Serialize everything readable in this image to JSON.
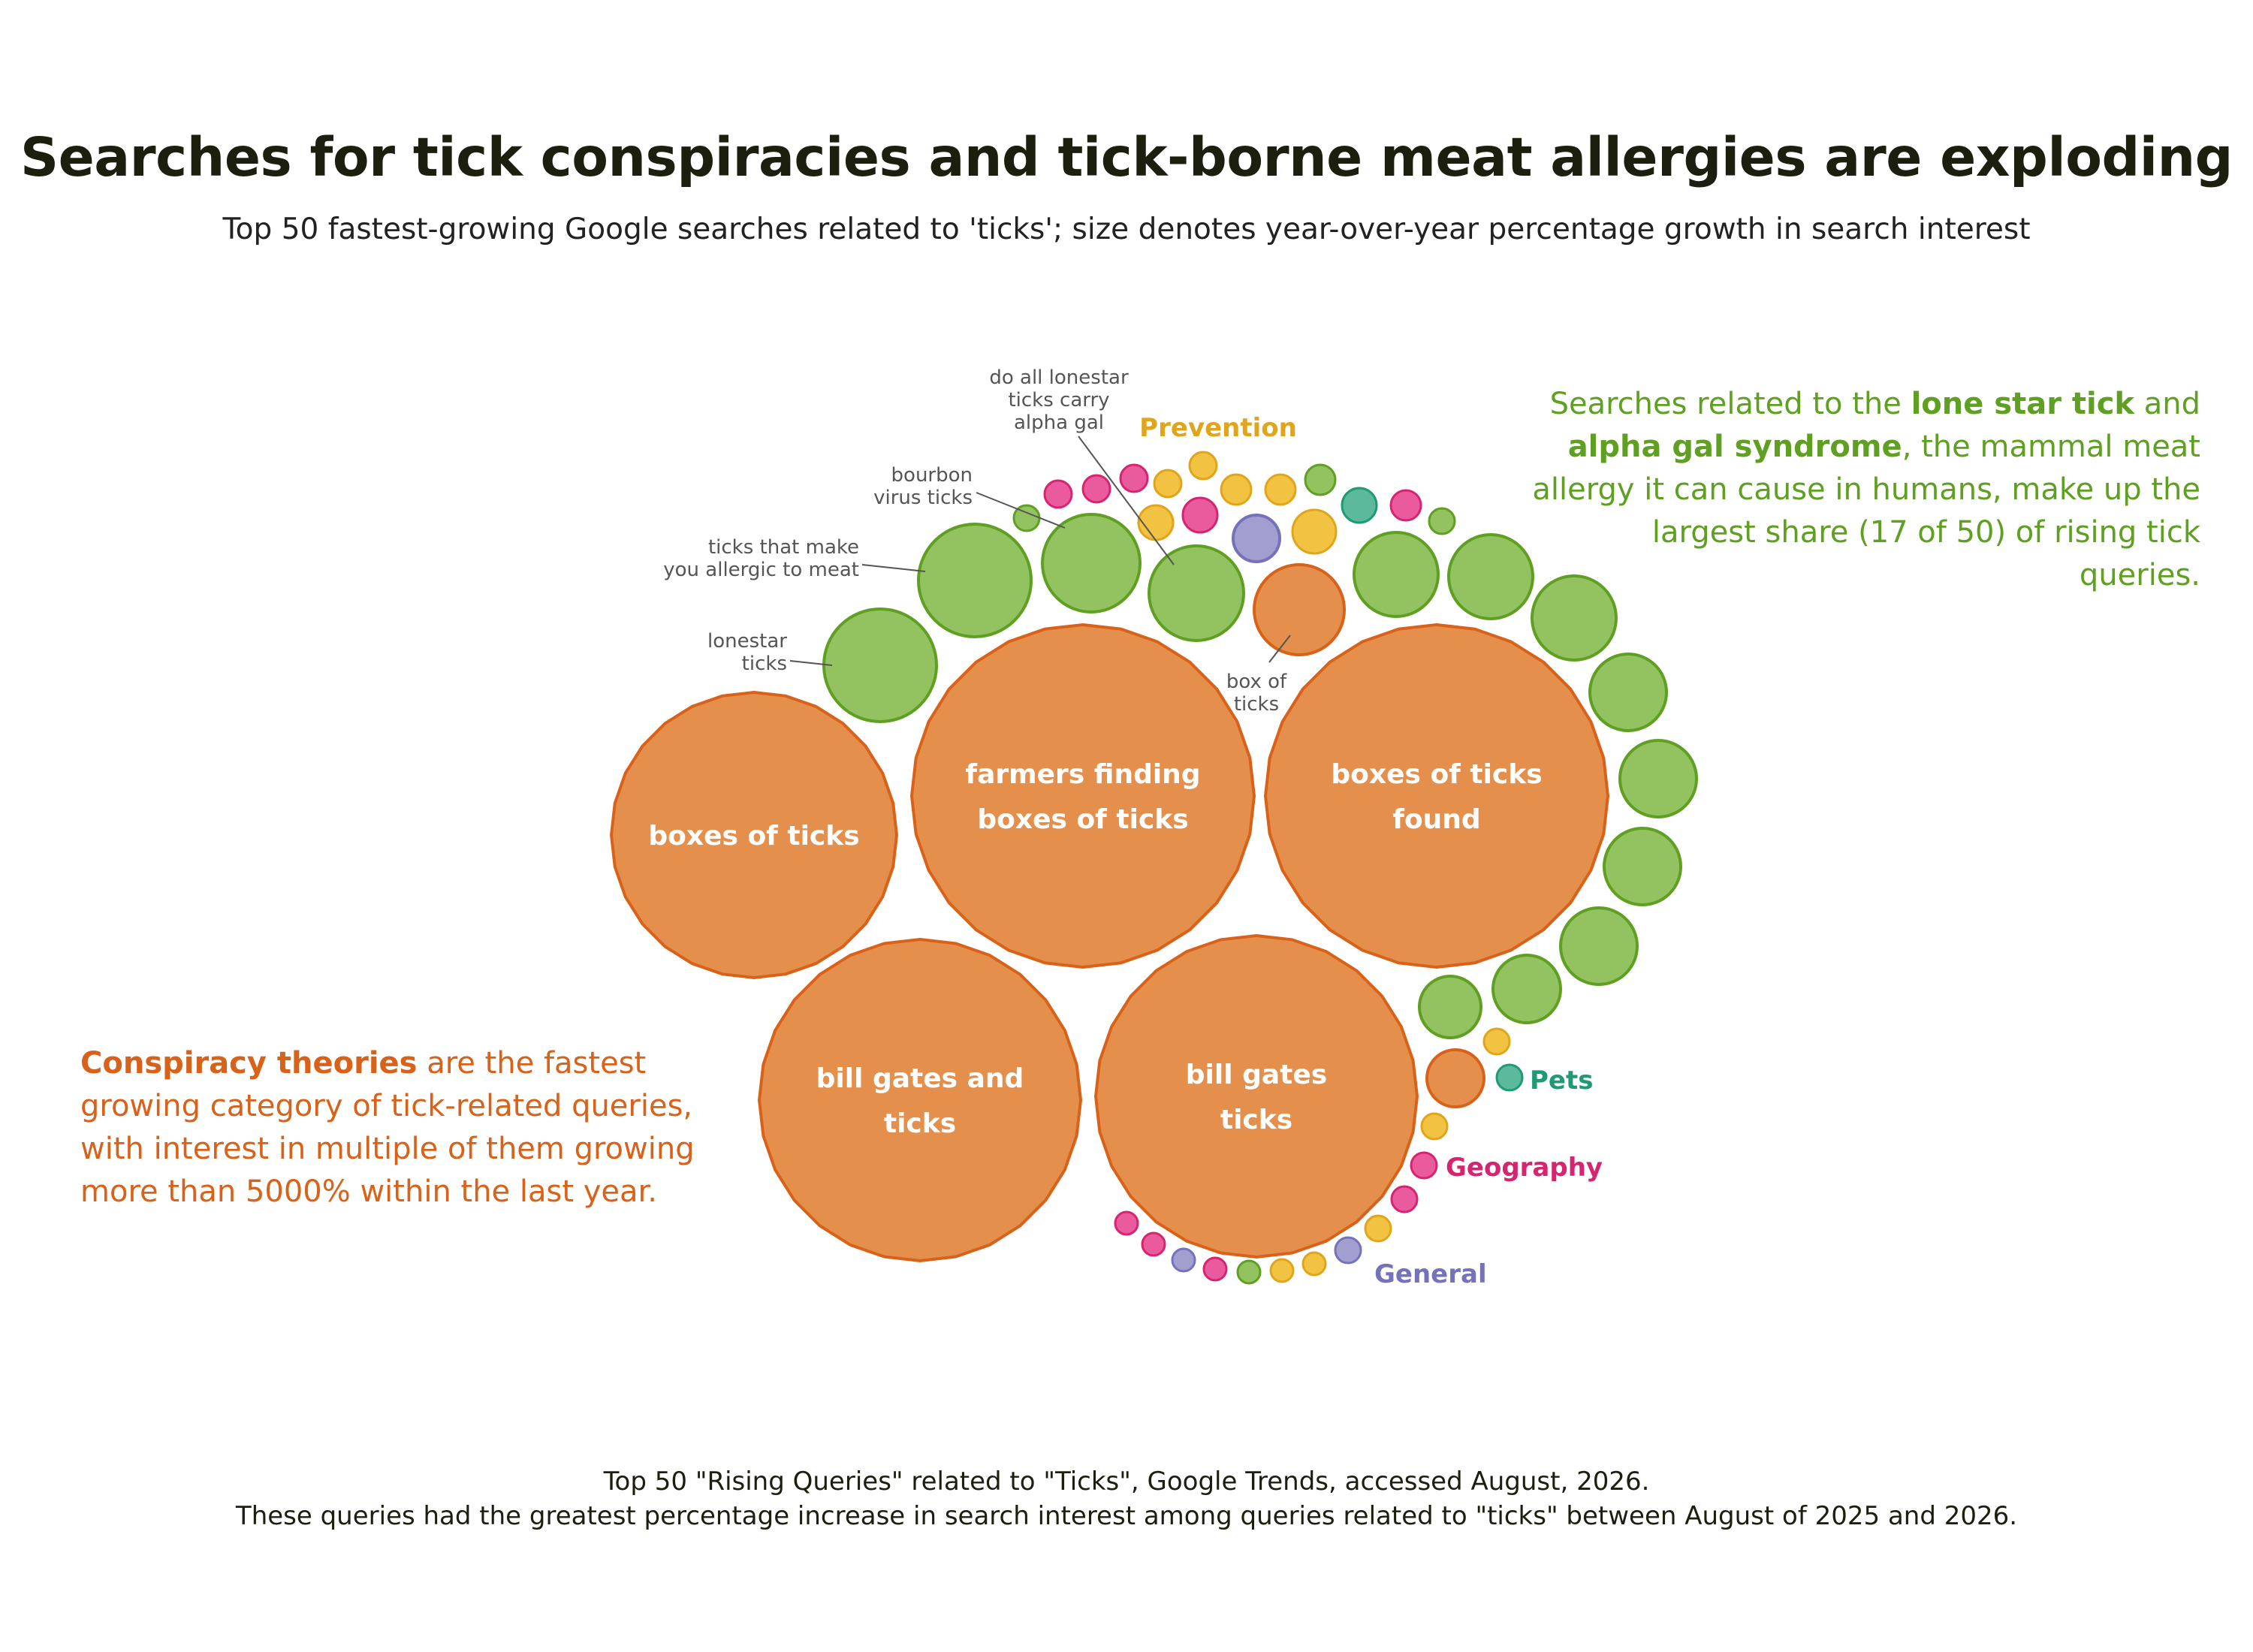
{
  "title": "Searches for tick conspiracies and tick-borne meat allergies are exploding",
  "subtitle": "Top 50 fastest-growing Google searches related to 'ticks'; size denotes year-over-year percentage growth in search interest",
  "annotations": {
    "green": {
      "t1": "Searches related to the ",
      "b1": "lone star tick",
      "t2": " and ",
      "b2": "alpha gal syndrome",
      "t3": ", the mammal meat allergy it can cause in humans, make up the largest share (17 of 50) of rising tick queries."
    },
    "orange": {
      "b1": "Conspiracy theories",
      "t1": " are the fastest growing category of tick-related queries, with interest in multiple of them growing more than 5000% within the last year."
    }
  },
  "footer": {
    "line1": "Top 50 \"Rising Queries\" related to \"Ticks\", Google Trends, accessed August, 2026.",
    "line2": "These queries had the greatest percentage increase in search interest among queries related to \"ticks\" between August of 2025 and 2026."
  },
  "colors": {
    "conspiracy": {
      "fill": "#e58f4d",
      "stroke": "#d9621a"
    },
    "lone_star": {
      "fill": "#93c260",
      "stroke": "#5f9f22"
    },
    "prevention": {
      "fill": "#f2c242",
      "stroke": "#e0a51a"
    },
    "geography": {
      "fill": "#ea5b9e",
      "stroke": "#d6246f"
    },
    "general": {
      "fill": "#a19fd0",
      "stroke": "#7572b9"
    },
    "pets": {
      "fill": "#5cb99c",
      "stroke": "#1e9a75"
    }
  },
  "chart_data": {
    "type": "bubble",
    "categories": {
      "prevention": "Prevention",
      "pets": "Pets",
      "geography": "Geography",
      "general": "General"
    },
    "labeled_bubbles": [
      {
        "label": "farmers finding boxes of ticks",
        "lines": [
          "farmers finding",
          "boxes of ticks"
        ],
        "category": "conspiracy"
      },
      {
        "label": "boxes of ticks found",
        "lines": [
          "boxes of ticks",
          "found"
        ],
        "category": "conspiracy"
      },
      {
        "label": "boxes of ticks",
        "lines": [
          "boxes of ticks"
        ],
        "category": "conspiracy"
      },
      {
        "label": "bill gates and ticks",
        "lines": [
          "bill gates and",
          "ticks"
        ],
        "category": "conspiracy"
      },
      {
        "label": "bill gates ticks",
        "lines": [
          "bill gates",
          "ticks"
        ],
        "category": "conspiracy"
      }
    ],
    "callouts": [
      {
        "lines": [
          "lonestar",
          "ticks"
        ]
      },
      {
        "lines": [
          "ticks that make",
          "you allergic to meat"
        ]
      },
      {
        "lines": [
          "bourbon",
          "virus ticks"
        ]
      },
      {
        "lines": [
          "do all lonestar",
          "ticks carry",
          "alpha gal"
        ]
      },
      {
        "lines": [
          "box of",
          "ticks"
        ]
      }
    ]
  }
}
